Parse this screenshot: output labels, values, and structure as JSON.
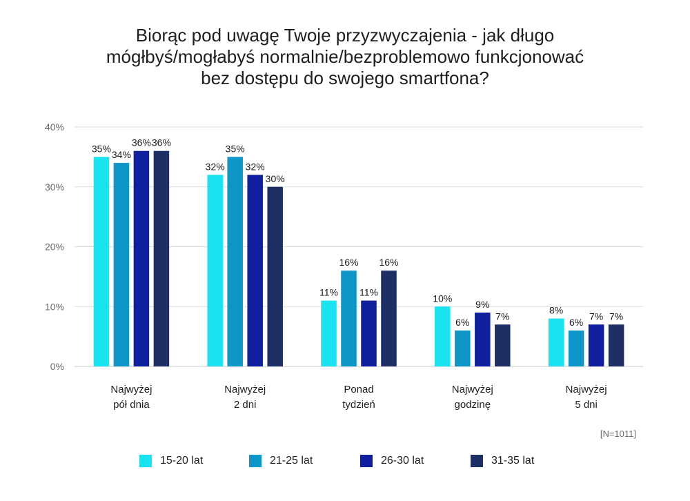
{
  "chart_data": {
    "type": "bar",
    "title_lines": [
      "Biorąc pod uwagę Twoje przyzwyczajenia - jak długo",
      "mógłbyś/mogłabyś normalnie/bezproblemowo funkcjonować",
      "bez dostępu do swojego smartfona?"
    ],
    "categories": [
      [
        "Najwyżej",
        "pół dnia"
      ],
      [
        "Najwyżej",
        "2 dni"
      ],
      [
        "Ponad",
        "tydzień"
      ],
      [
        "Najwyżej",
        "godzinę"
      ],
      [
        "Najwyżej",
        "5 dni"
      ]
    ],
    "series": [
      {
        "name": "15-20 lat",
        "color": "#19e3ee",
        "values": [
          35,
          32,
          11,
          10,
          8
        ]
      },
      {
        "name": "21-25 lat",
        "color": "#0f96c8",
        "values": [
          34,
          35,
          16,
          6,
          6
        ]
      },
      {
        "name": "26-30 lat",
        "color": "#101f9e",
        "values": [
          36,
          32,
          11,
          9,
          7
        ]
      },
      {
        "name": "31-35 lat",
        "color": "#1e2f66",
        "values": [
          36,
          30,
          16,
          7,
          7
        ]
      }
    ],
    "value_suffix": "%",
    "yticks": [
      "0%",
      "10%",
      "20%",
      "30%",
      "40%"
    ],
    "ylim": [
      0,
      40
    ],
    "grid": true,
    "legend_position": "bottom",
    "note": "[N=1011]"
  }
}
